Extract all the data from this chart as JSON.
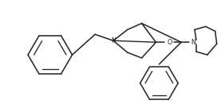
{
  "bg_color": "#ffffff",
  "line_color": "#222222",
  "line_width": 1.1,
  "figsize": [
    2.77,
    1.41
  ],
  "dpi": 100,
  "xlim": [
    0,
    277
  ],
  "ylim": [
    0,
    141
  ]
}
